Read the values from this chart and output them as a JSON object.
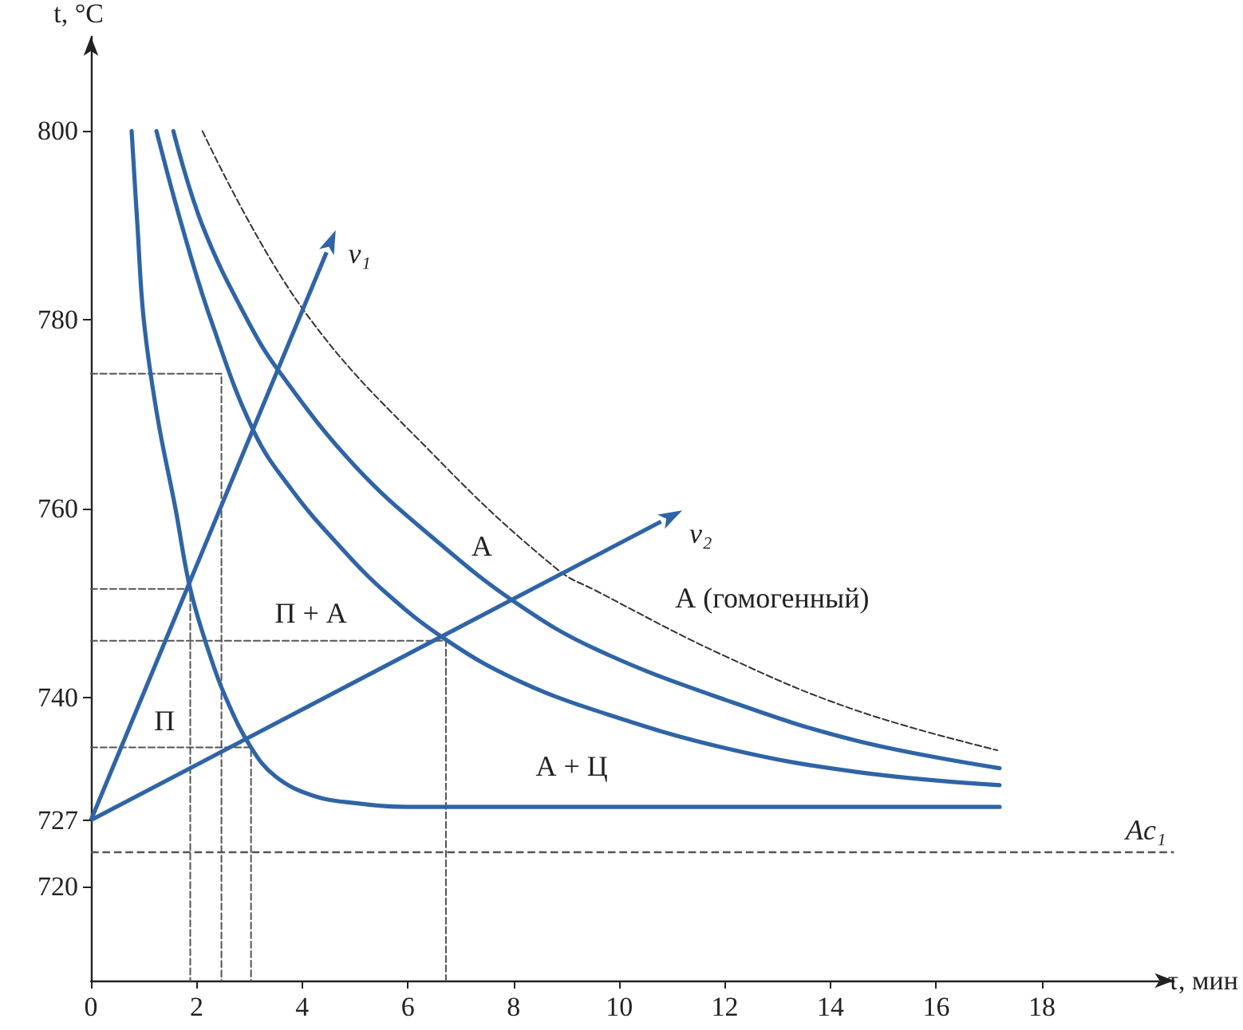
{
  "chart_data": {
    "type": "line",
    "xlabel": "τ, мин",
    "ylabel": "t, °C",
    "xlim": [
      0,
      20.5
    ],
    "ylim": [
      710,
      810
    ],
    "xticks": [
      0,
      2,
      4,
      6,
      8,
      10,
      12,
      14,
      16,
      18
    ],
    "yticks": [
      720,
      727,
      740,
      760,
      780,
      800
    ],
    "grid": false,
    "marker": "none",
    "series": [
      {
        "color": "#2f64a6",
        "line_style": "solid",
        "x": [
          0.77,
          0.88,
          1.0,
          1.25,
          1.6,
          1.88,
          2.25,
          2.55,
          3.03,
          3.5,
          4.2,
          5,
          6,
          17.2
        ],
        "values": [
          800,
          790,
          780,
          770,
          760,
          751.5,
          744.5,
          740,
          734.7,
          731.6,
          729.6,
          728.8,
          728.4,
          728.4
        ]
      },
      {
        "color": "#2f64a6",
        "line_style": "solid",
        "x": [
          1.24,
          1.72,
          2.27,
          3.09,
          3.8,
          4.63,
          5.6,
          6.75,
          8,
          9.56,
          12.03,
          14.5,
          17.2
        ],
        "values": [
          800,
          790,
          780,
          768.1,
          762,
          756.5,
          751,
          746,
          742,
          738.6,
          734.6,
          732.1,
          730.7
        ]
      },
      {
        "color": "#2f64a6",
        "line_style": "solid",
        "x": [
          1.56,
          2.11,
          2.96,
          3.58,
          5,
          6.56,
          8.05,
          9.56,
          12.03,
          14.5,
          17.2
        ],
        "values": [
          800,
          790,
          780,
          774.4,
          764.5,
          756.5,
          750,
          745.1,
          739.7,
          735.4,
          732.5
        ]
      },
      {
        "color": "#333333",
        "line_style": "dashed",
        "x": [
          2.11,
          3.99,
          6.61,
          8.82,
          9.56,
          12.03,
          14.5,
          17.16
        ],
        "values": [
          800,
          781.3,
          765,
          753.6,
          751.3,
          744.3,
          738.6,
          734.4
        ]
      },
      {
        "color": "#555555",
        "line_style": "dashed",
        "x": [
          0,
          2.47,
          2.47
        ],
        "values": [
          774.3,
          774.3,
          710
        ]
      },
      {
        "color": "#555555",
        "line_style": "dashed",
        "x": [
          0,
          1.88,
          1.88
        ],
        "values": [
          751.5,
          751.5,
          710
        ]
      },
      {
        "color": "#555555",
        "line_style": "dashed",
        "x": [
          0,
          6.72,
          6.72
        ],
        "values": [
          746,
          746,
          710
        ]
      },
      {
        "color": "#555555",
        "line_style": "dashed",
        "x": [
          0,
          3.03,
          3.03
        ],
        "values": [
          734.7,
          734.7,
          710
        ]
      }
    ],
    "ref_lines": [
      {
        "axis": "y",
        "value": 723.6,
        "label": "Ac₁",
        "color": "#555555",
        "line_style": "dashed"
      }
    ],
    "annotations": [
      "П",
      "П + А",
      "А",
      "А + Ц",
      "А (гомогенный)",
      "v₁",
      "v₂"
    ]
  }
}
